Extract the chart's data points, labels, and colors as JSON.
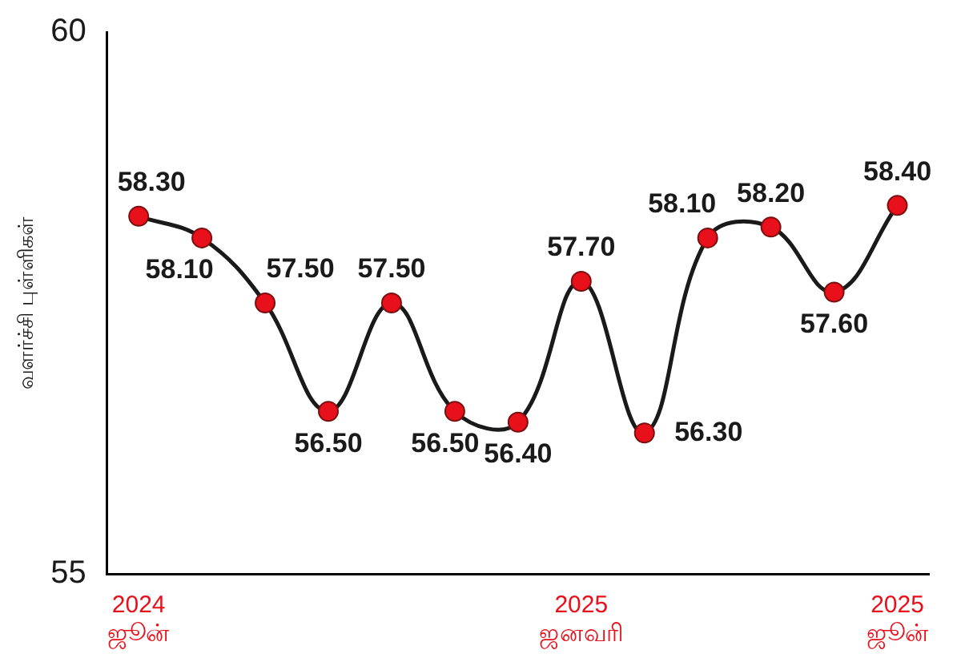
{
  "chart_data": {
    "type": "line",
    "ylabel": "வளர்ச்சி புள்ளிகள்",
    "categories": [
      "2024 ஜூன்",
      null,
      null,
      null,
      null,
      null,
      null,
      "2025 ஜனவரி",
      null,
      null,
      null,
      null,
      "2025 ஜூன்"
    ],
    "series": [
      {
        "color": "#1a1a1a",
        "values": [
          58.3,
          58.1,
          57.5,
          56.5,
          57.5,
          56.5,
          56.4,
          57.7,
          56.3,
          58.1,
          58.2,
          57.6,
          58.4
        ],
        "value_labels": [
          "58.30",
          "58.10",
          "57.50",
          "56.50",
          "57.50",
          "56.50",
          "56.40",
          "57.70",
          "56.30",
          "58.10",
          "58.20",
          "57.60",
          "58.40"
        ]
      }
    ],
    "ylim": [
      55,
      60
    ],
    "yticks": [
      55,
      60
    ],
    "grid": false,
    "legend": false,
    "marker": "circle"
  }
}
